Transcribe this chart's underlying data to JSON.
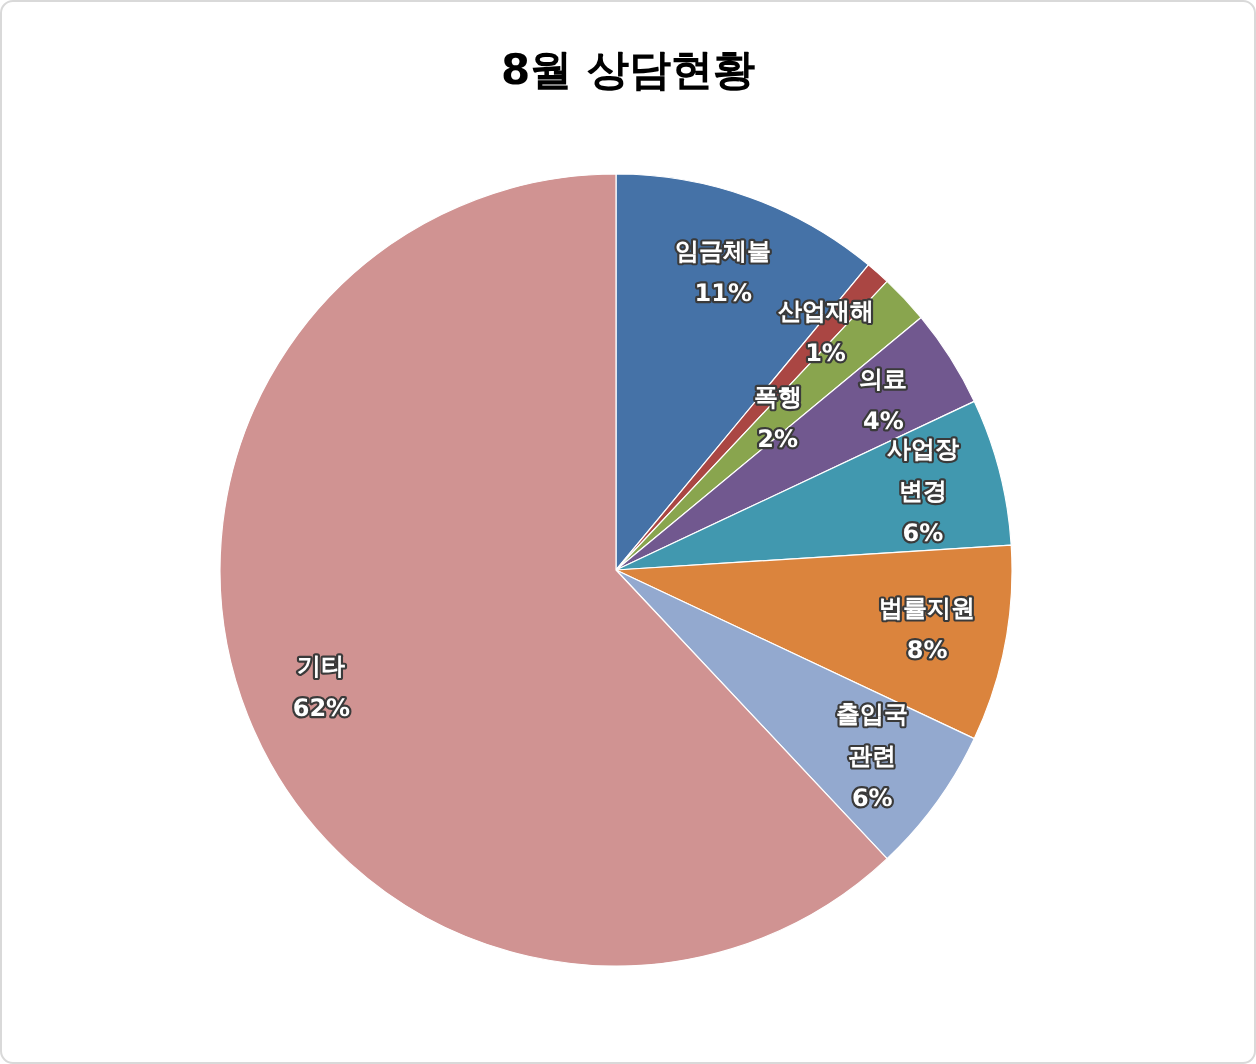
{
  "chart_data": {
    "type": "pie",
    "title": "8월 상담현황",
    "categories": [
      "임금체불",
      "산업재해",
      "폭행",
      "의료",
      "사업장 변경",
      "법률지원",
      "출입국 관련",
      "기타"
    ],
    "values": [
      11,
      1,
      2,
      4,
      6,
      8,
      6,
      62
    ],
    "colors": [
      "#4572a7",
      "#aa4643",
      "#89a54e",
      "#71588f",
      "#4198af",
      "#db843d",
      "#93a9cf",
      "#d09392"
    ],
    "value_labels": [
      "11%",
      "1%",
      "2%",
      "4%",
      "6%",
      "8%",
      "6%",
      "62%"
    ]
  }
}
